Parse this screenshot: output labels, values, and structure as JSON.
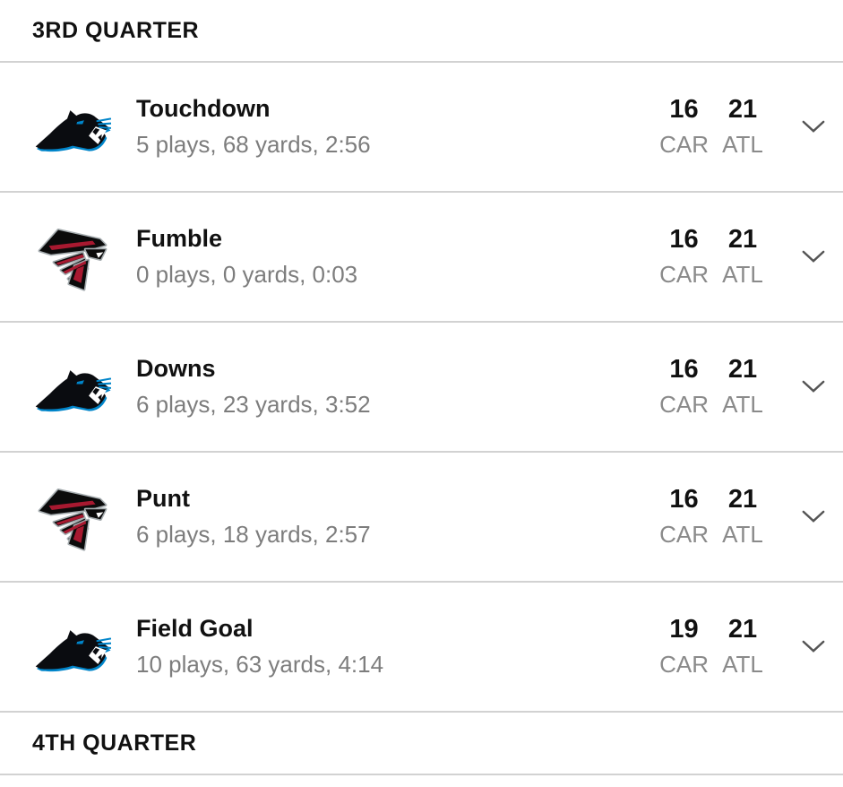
{
  "page": {
    "background_color": "#ffffff",
    "divider_color": "#d2d2d2",
    "title_color": "#111111",
    "detail_color": "#7d7d7d",
    "abbr_color": "#8a8a8a",
    "chevron_color": "#555555"
  },
  "teams": {
    "CAR": {
      "abbr": "CAR",
      "logo": "panthers-logo",
      "primary_color": "#0085CA",
      "secondary_color": "#101820"
    },
    "ATL": {
      "abbr": "ATL",
      "logo": "falcons-logo",
      "primary_color": "#A71930",
      "secondary_color": "#0b0b0b",
      "trim_color": "#a5acaf"
    }
  },
  "icons": {
    "expand": "chevron-down-icon"
  },
  "quarters": [
    {
      "label": "3RD QUARTER",
      "drives": [
        {
          "team": "CAR",
          "logo": "panthers-logo",
          "result": "Touchdown",
          "detail": "5 plays, 68 yards, 2:56",
          "away_score": "16",
          "home_score": "21",
          "away_abbr": "CAR",
          "home_abbr": "ATL"
        },
        {
          "team": "ATL",
          "logo": "falcons-logo",
          "result": "Fumble",
          "detail": "0 plays, 0 yards, 0:03",
          "away_score": "16",
          "home_score": "21",
          "away_abbr": "CAR",
          "home_abbr": "ATL"
        },
        {
          "team": "CAR",
          "logo": "panthers-logo",
          "result": "Downs",
          "detail": "6 plays, 23 yards, 3:52",
          "away_score": "16",
          "home_score": "21",
          "away_abbr": "CAR",
          "home_abbr": "ATL"
        },
        {
          "team": "ATL",
          "logo": "falcons-logo",
          "result": "Punt",
          "detail": "6 plays, 18 yards, 2:57",
          "away_score": "16",
          "home_score": "21",
          "away_abbr": "CAR",
          "home_abbr": "ATL"
        },
        {
          "team": "CAR",
          "logo": "panthers-logo",
          "result": "Field Goal",
          "detail": "10 plays, 63 yards, 4:14",
          "away_score": "19",
          "home_score": "21",
          "away_abbr": "CAR",
          "home_abbr": "ATL"
        }
      ]
    },
    {
      "label": "4TH QUARTER",
      "drives": []
    }
  ]
}
